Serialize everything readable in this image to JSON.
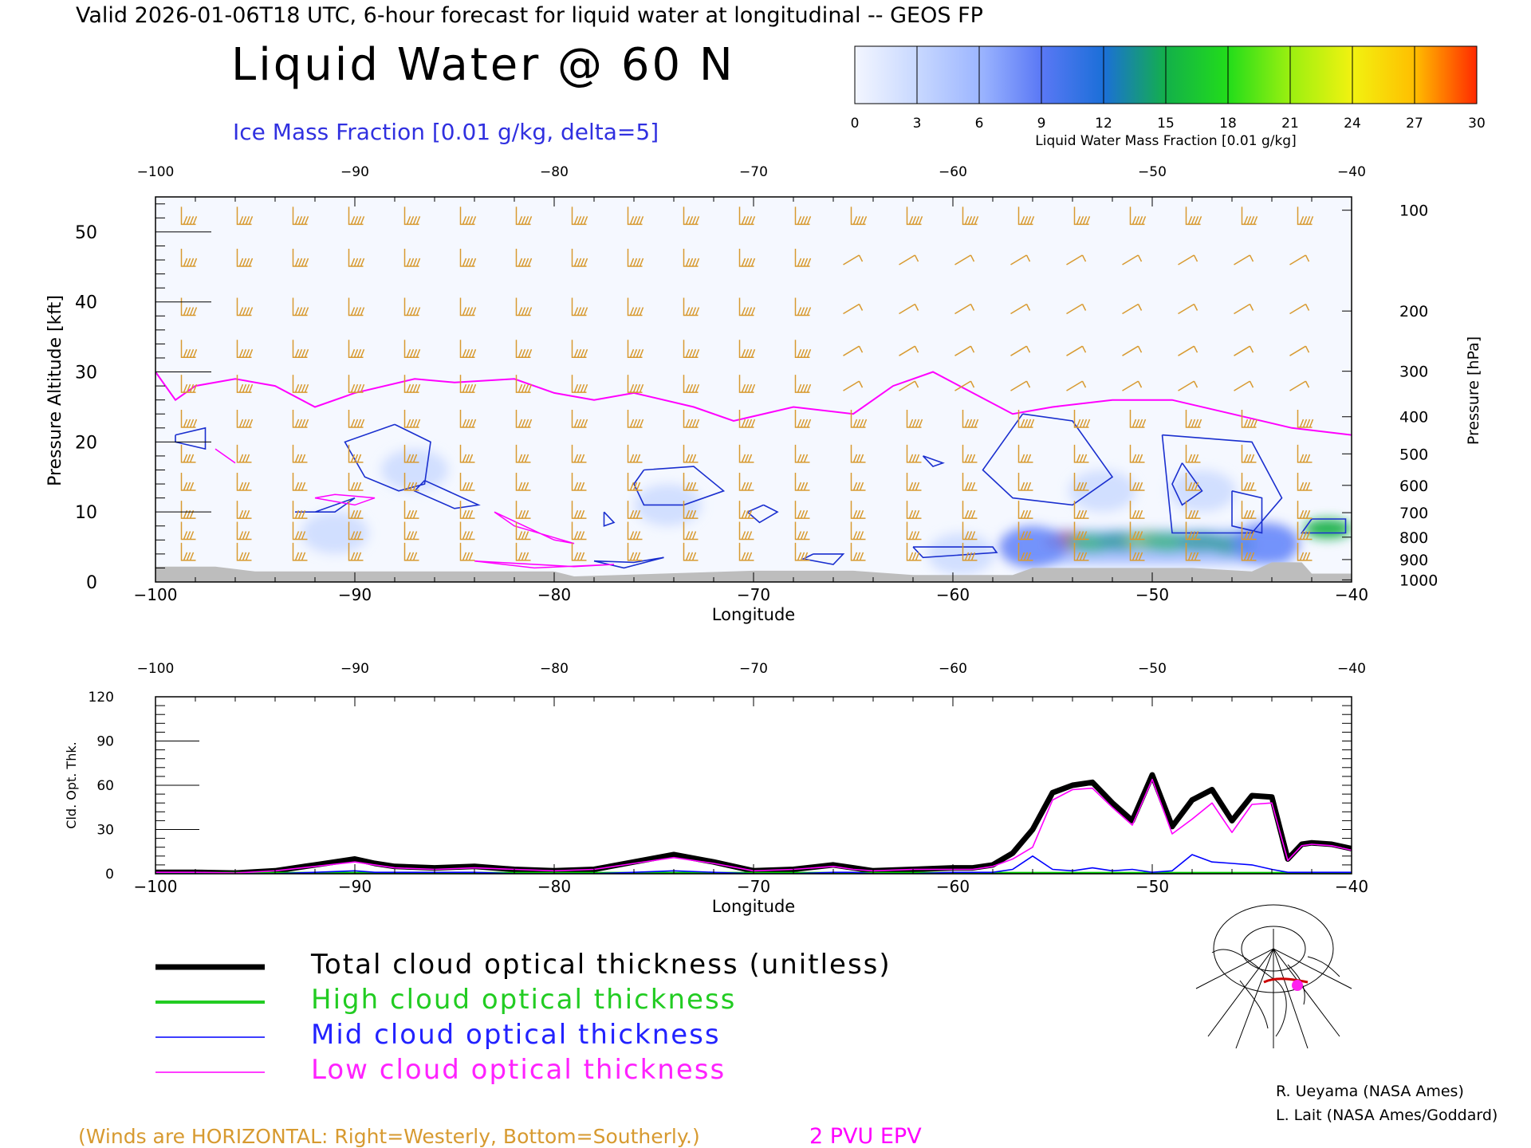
{
  "header": {
    "valid_line": "Valid 2026-01-06T18 UTC, 6-hour forecast for liquid water at longitudinal -- GEOS FP",
    "title": "Liquid Water @ 60 N",
    "subtitle": "Ice Mass Fraction [0.01 g/kg, delta=5]"
  },
  "colorbar": {
    "label": "Liquid Water Mass Fraction [0.01 g/kg]",
    "ticks": [
      "0",
      "3",
      "6",
      "9",
      "12",
      "15",
      "18",
      "21",
      "24",
      "27",
      "30"
    ],
    "colors": [
      "#f3f6ff",
      "#c8d8ff",
      "#9db6ff",
      "#5a78f5",
      "#1b6fd8",
      "#13b04a",
      "#22dd1a",
      "#9bf010",
      "#f2f210",
      "#ffbe00",
      "#ff7000"
    ]
  },
  "chart_data": [
    {
      "type": "heatmap",
      "title": "Liquid Water @ 60 N",
      "xlabel": "Longitude",
      "ylabel": "Pressure Altitude [kft]",
      "ylabel_right": "Pressure [hPa]",
      "xlim": [
        -100,
        -40
      ],
      "ylim": [
        0,
        55
      ],
      "x_ticks": [
        "-100",
        "-90",
        "-80",
        "-70",
        "-60",
        "-50",
        "-40"
      ],
      "y_ticks": [
        "0",
        "10",
        "20",
        "30",
        "40",
        "50"
      ],
      "pressure_ticks": [
        {
          "label": "100",
          "kft": 53.1
        },
        {
          "label": "200",
          "kft": 38.7
        },
        {
          "label": "300",
          "kft": 30.1
        },
        {
          "label": "400",
          "kft": 23.6
        },
        {
          "label": "500",
          "kft": 18.3
        },
        {
          "label": "600",
          "kft": 13.8
        },
        {
          "label": "700",
          "kft": 9.9
        },
        {
          "label": "800",
          "kft": 6.4
        },
        {
          "label": "900",
          "kft": 3.2
        },
        {
          "label": "1000",
          "kft": 0.3
        }
      ],
      "liquid_water_blobs": [
        {
          "lon": -54.2,
          "alt": 5.8,
          "value": 28
        },
        {
          "lon": -53.0,
          "alt": 5.6,
          "value": 20
        },
        {
          "lon": -51.6,
          "alt": 5.8,
          "value": 16
        },
        {
          "lon": -50.2,
          "alt": 5.9,
          "value": 22
        },
        {
          "lon": -49.2,
          "alt": 5.7,
          "value": 20
        },
        {
          "lon": -47.6,
          "alt": 5.7,
          "value": 17
        },
        {
          "lon": -46.0,
          "alt": 5.3,
          "value": 15
        },
        {
          "lon": -41.2,
          "alt": 7.6,
          "value": 16
        },
        {
          "lon": -44.3,
          "alt": 5.5,
          "value": 9
        },
        {
          "lon": -56.0,
          "alt": 5.0,
          "value": 9
        },
        {
          "lon": -87.0,
          "alt": 16.0,
          "value": 4
        },
        {
          "lon": -91.0,
          "alt": 7.0,
          "value": 3
        },
        {
          "lon": -74.3,
          "alt": 11.0,
          "value": 3
        },
        {
          "lon": -47.5,
          "alt": 13.0,
          "value": 5
        },
        {
          "lon": -52.5,
          "alt": 13.0,
          "value": 4
        },
        {
          "lon": -59.6,
          "alt": 4.0,
          "value": 3
        }
      ],
      "epv_2pvu_kft": [
        {
          "lon": -100,
          "kft": 30
        },
        {
          "lon": -99,
          "kft": 26
        },
        {
          "lon": -98,
          "kft": 28
        },
        {
          "lon": -96,
          "kft": 29
        },
        {
          "lon": -94,
          "kft": 28
        },
        {
          "lon": -92,
          "kft": 25
        },
        {
          "lon": -90,
          "kft": 27
        },
        {
          "lon": -87,
          "kft": 29
        },
        {
          "lon": -85,
          "kft": 28.5
        },
        {
          "lon": -82,
          "kft": 29
        },
        {
          "lon": -80,
          "kft": 27
        },
        {
          "lon": -78,
          "kft": 26
        },
        {
          "lon": -76,
          "kft": 27
        },
        {
          "lon": -73,
          "kft": 25
        },
        {
          "lon": -71,
          "kft": 23
        },
        {
          "lon": -68,
          "kft": 25
        },
        {
          "lon": -65,
          "kft": 24
        },
        {
          "lon": -63,
          "kft": 28
        },
        {
          "lon": -61,
          "kft": 30
        },
        {
          "lon": -59,
          "kft": 27
        },
        {
          "lon": -57,
          "kft": 24
        },
        {
          "lon": -55,
          "kft": 25
        },
        {
          "lon": -52,
          "kft": 26
        },
        {
          "lon": -49,
          "kft": 26
        },
        {
          "lon": -46,
          "kft": 24
        },
        {
          "lon": -43,
          "kft": 22
        },
        {
          "lon": -40,
          "kft": 21
        }
      ],
      "legend_winds": "(Winds are HORIZONTAL: Right=Westerly, Bottom=Southerly.)",
      "legend_epv": "2 PVU EPV"
    },
    {
      "type": "line",
      "xlabel": "Longitude",
      "ylabel": "Cld. Opt. Thk.",
      "xlim": [
        -100,
        -40
      ],
      "ylim": [
        0,
        120
      ],
      "x_ticks": [
        "-100",
        "-90",
        "-80",
        "-70",
        "-60",
        "-50",
        "-40"
      ],
      "y_ticks": [
        "0",
        "30",
        "60",
        "90",
        "120"
      ],
      "x": [
        -100,
        -98,
        -96,
        -94,
        -92,
        -90,
        -89,
        -88,
        -86,
        -84,
        -82,
        -80,
        -78,
        -76,
        -74,
        -72,
        -70,
        -68,
        -66,
        -65,
        -64,
        -62,
        -60,
        -59,
        -58,
        -57,
        -56,
        -55,
        -54,
        -53,
        -52,
        -51,
        -50,
        -49,
        -48,
        -47,
        -46,
        -45,
        -44,
        -43.2,
        -42.5,
        -42,
        -41,
        -40
      ],
      "series": [
        {
          "name": "Total cloud optical thickness (unitless)",
          "color": "#000000",
          "values": [
            1,
            1,
            0.5,
            2,
            6,
            10,
            7,
            5,
            4,
            5,
            3,
            2,
            3,
            8,
            13,
            8,
            2,
            3,
            6,
            4,
            2,
            3,
            4,
            4,
            6,
            14,
            30,
            55,
            60,
            62,
            48,
            36,
            67,
            32,
            50,
            57,
            36,
            53,
            52,
            10,
            20,
            21,
            20,
            17
          ]
        },
        {
          "name": "High cloud optical thickness",
          "color": "#00cc00",
          "values": [
            0.2,
            0.2,
            0.2,
            0.2,
            0.2,
            0.2,
            0.2,
            0.2,
            0.2,
            0.2,
            0.2,
            0.2,
            0.2,
            0.2,
            0.2,
            0.2,
            0.2,
            0.2,
            0.2,
            0.2,
            0.2,
            0.2,
            0.2,
            0.2,
            0.2,
            0.2,
            0.2,
            0.2,
            0.2,
            0.2,
            0.2,
            0.2,
            0.2,
            0.2,
            0.2,
            0.2,
            0.2,
            0.2,
            0.2,
            0.2,
            0.2,
            0.2,
            0.2,
            0.2
          ]
        },
        {
          "name": "Mid cloud optical thickness",
          "color": "#0000ff",
          "values": [
            0,
            0,
            0,
            0,
            1,
            2,
            1,
            1,
            1,
            1,
            0,
            0,
            0,
            1,
            2,
            1,
            0,
            0,
            1,
            1,
            0,
            0,
            1,
            1,
            1,
            3,
            12,
            3,
            2,
            4,
            2,
            3,
            1,
            2,
            13,
            8,
            7,
            6,
            3,
            1,
            1,
            1,
            1,
            1
          ]
        },
        {
          "name": "Low cloud optical thickness",
          "color": "#ff00ff",
          "values": [
            1,
            1,
            0.5,
            2,
            5,
            8,
            6,
            4,
            3,
            4,
            3,
            2,
            3,
            7,
            11,
            7,
            2,
            3,
            5,
            3,
            2,
            3,
            3,
            3,
            5,
            10,
            18,
            50,
            57,
            58,
            45,
            33,
            64,
            27,
            37,
            48,
            28,
            47,
            48,
            9,
            19,
            20,
            19,
            16
          ]
        }
      ]
    }
  ],
  "credits": {
    "line1": "R. Ueyama (NASA Ames)",
    "line2": "L. Lait (NASA Ames/Goddard)"
  }
}
